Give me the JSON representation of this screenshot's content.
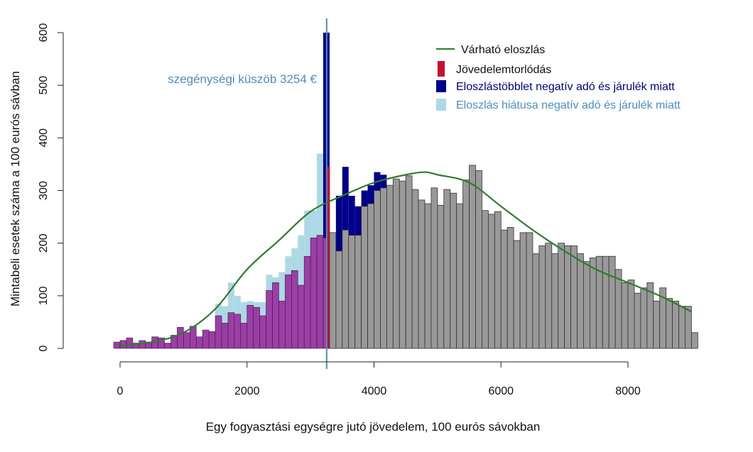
{
  "chart_data": {
    "type": "bar",
    "xlabel": "Egy fogyasztási egységre jutó jövedelem, 100 eurós sávokban",
    "ylabel": "Mintabeli esetek száma a 100 eurós sávban",
    "xlim": [
      -500,
      9100
    ],
    "ylim": [
      0,
      600
    ],
    "x_ticks": [
      0,
      2000,
      4000,
      6000,
      8000
    ],
    "y_ticks": [
      0,
      100,
      200,
      300,
      400,
      500,
      600
    ],
    "bin_width": 100,
    "bins": [
      {
        "x": -100,
        "gray": 0,
        "purple": 12,
        "navy": 0,
        "light": 0
      },
      {
        "x": 0,
        "gray": 0,
        "purple": 15,
        "navy": 0,
        "light": 0
      },
      {
        "x": 100,
        "gray": 0,
        "purple": 20,
        "navy": 0,
        "light": 0
      },
      {
        "x": 200,
        "gray": 0,
        "purple": 10,
        "navy": 0,
        "light": 0
      },
      {
        "x": 300,
        "gray": 0,
        "purple": 15,
        "navy": 0,
        "light": 0
      },
      {
        "x": 400,
        "gray": 0,
        "purple": 12,
        "navy": 0,
        "light": 0
      },
      {
        "x": 500,
        "gray": 0,
        "purple": 22,
        "navy": 0,
        "light": 0
      },
      {
        "x": 600,
        "gray": 0,
        "purple": 20,
        "navy": 0,
        "light": 0
      },
      {
        "x": 700,
        "gray": 0,
        "purple": 10,
        "navy": 0,
        "light": 0
      },
      {
        "x": 800,
        "gray": 0,
        "purple": 25,
        "navy": 0,
        "light": 0
      },
      {
        "x": 900,
        "gray": 0,
        "purple": 40,
        "navy": 0,
        "light": 0
      },
      {
        "x": 1000,
        "gray": 0,
        "purple": 30,
        "navy": 0,
        "light": 0
      },
      {
        "x": 1100,
        "gray": 0,
        "purple": 42,
        "navy": 0,
        "light": 0
      },
      {
        "x": 1200,
        "gray": 0,
        "purple": 22,
        "navy": 0,
        "light": 0
      },
      {
        "x": 1300,
        "gray": 0,
        "purple": 35,
        "navy": 0,
        "light": 0
      },
      {
        "x": 1400,
        "gray": 0,
        "purple": 32,
        "navy": 0,
        "light": 0
      },
      {
        "x": 1500,
        "gray": 0,
        "purple": 62,
        "navy": 0,
        "light": 85
      },
      {
        "x": 1600,
        "gray": 0,
        "purple": 48,
        "navy": 0,
        "light": 80
      },
      {
        "x": 1700,
        "gray": 0,
        "purple": 68,
        "navy": 0,
        "light": 125
      },
      {
        "x": 1800,
        "gray": 0,
        "purple": 65,
        "navy": 0,
        "light": 100
      },
      {
        "x": 1900,
        "gray": 0,
        "purple": 48,
        "navy": 0,
        "light": 88
      },
      {
        "x": 2000,
        "gray": 0,
        "purple": 82,
        "navy": 0,
        "light": 90
      },
      {
        "x": 2100,
        "gray": 0,
        "purple": 78,
        "navy": 0,
        "light": 88
      },
      {
        "x": 2200,
        "gray": 0,
        "purple": 62,
        "navy": 0,
        "light": 88
      },
      {
        "x": 2300,
        "gray": 0,
        "purple": 110,
        "navy": 0,
        "light": 140
      },
      {
        "x": 2400,
        "gray": 0,
        "purple": 125,
        "navy": 0,
        "light": 135
      },
      {
        "x": 2500,
        "gray": 0,
        "purple": 90,
        "navy": 0,
        "light": 145
      },
      {
        "x": 2600,
        "gray": 0,
        "purple": 140,
        "navy": 0,
        "light": 175
      },
      {
        "x": 2700,
        "gray": 0,
        "purple": 148,
        "navy": 0,
        "light": 190
      },
      {
        "x": 2800,
        "gray": 0,
        "purple": 120,
        "navy": 0,
        "light": 215
      },
      {
        "x": 2900,
        "gray": 0,
        "purple": 175,
        "navy": 0,
        "light": 262
      },
      {
        "x": 3000,
        "gray": 0,
        "purple": 210,
        "navy": 0,
        "light": 262
      },
      {
        "x": 3100,
        "gray": 0,
        "purple": 215,
        "navy": 0,
        "light": 370
      },
      {
        "x": 3200,
        "gray": 0,
        "purple": 210,
        "navy": 600,
        "light": 0,
        "red": 345
      },
      {
        "x": 3300,
        "gray": 220,
        "purple": 0,
        "navy": 0,
        "light": 0
      },
      {
        "x": 3400,
        "gray": 185,
        "purple": 0,
        "navy": 290,
        "light": 0
      },
      {
        "x": 3500,
        "gray": 225,
        "purple": 0,
        "navy": 345,
        "light": 0
      },
      {
        "x": 3600,
        "gray": 215,
        "purple": 0,
        "navy": 290,
        "light": 0
      },
      {
        "x": 3700,
        "gray": 215,
        "purple": 0,
        "navy": 270,
        "light": 0
      },
      {
        "x": 3800,
        "gray": 270,
        "purple": 0,
        "navy": 300,
        "light": 0
      },
      {
        "x": 3900,
        "gray": 275,
        "purple": 0,
        "navy": 310,
        "light": 0
      },
      {
        "x": 4000,
        "gray": 300,
        "purple": 0,
        "navy": 335,
        "light": 0
      },
      {
        "x": 4100,
        "gray": 305,
        "purple": 0,
        "navy": 330,
        "light": 0
      },
      {
        "x": 4200,
        "gray": 310,
        "purple": 0,
        "navy": 0,
        "light": 0
      },
      {
        "x": 4300,
        "gray": 322,
        "purple": 0,
        "navy": 0,
        "light": 0
      },
      {
        "x": 4400,
        "gray": 318,
        "purple": 0,
        "navy": 0,
        "light": 0
      },
      {
        "x": 4500,
        "gray": 328,
        "purple": 0,
        "navy": 0,
        "light": 0
      },
      {
        "x": 4600,
        "gray": 302,
        "purple": 0,
        "navy": 0,
        "light": 0
      },
      {
        "x": 4700,
        "gray": 282,
        "purple": 0,
        "navy": 0,
        "light": 0
      },
      {
        "x": 4800,
        "gray": 275,
        "purple": 0,
        "navy": 0,
        "light": 0
      },
      {
        "x": 4900,
        "gray": 305,
        "purple": 0,
        "navy": 0,
        "light": 0
      },
      {
        "x": 5000,
        "gray": 272,
        "purple": 0,
        "navy": 0,
        "light": 0
      },
      {
        "x": 5100,
        "gray": 302,
        "purple": 0,
        "navy": 0,
        "light": 0
      },
      {
        "x": 5200,
        "gray": 295,
        "purple": 0,
        "navy": 0,
        "light": 0
      },
      {
        "x": 5300,
        "gray": 275,
        "purple": 0,
        "navy": 0,
        "light": 0
      },
      {
        "x": 5400,
        "gray": 320,
        "purple": 0,
        "navy": 0,
        "light": 0
      },
      {
        "x": 5500,
        "gray": 348,
        "purple": 0,
        "navy": 0,
        "light": 0
      },
      {
        "x": 5600,
        "gray": 338,
        "purple": 0,
        "navy": 0,
        "light": 0
      },
      {
        "x": 5700,
        "gray": 262,
        "purple": 0,
        "navy": 0,
        "light": 0
      },
      {
        "x": 5800,
        "gray": 255,
        "purple": 0,
        "navy": 0,
        "light": 0
      },
      {
        "x": 5900,
        "gray": 260,
        "purple": 0,
        "navy": 0,
        "light": 0
      },
      {
        "x": 6000,
        "gray": 225,
        "purple": 0,
        "navy": 0,
        "light": 0
      },
      {
        "x": 6100,
        "gray": 230,
        "purple": 0,
        "navy": 0,
        "light": 0
      },
      {
        "x": 6200,
        "gray": 205,
        "purple": 0,
        "navy": 0,
        "light": 0
      },
      {
        "x": 6300,
        "gray": 220,
        "purple": 0,
        "navy": 0,
        "light": 0
      },
      {
        "x": 6400,
        "gray": 220,
        "purple": 0,
        "navy": 0,
        "light": 0
      },
      {
        "x": 6500,
        "gray": 180,
        "purple": 0,
        "navy": 0,
        "light": 0
      },
      {
        "x": 6600,
        "gray": 195,
        "purple": 0,
        "navy": 0,
        "light": 0
      },
      {
        "x": 6700,
        "gray": 200,
        "purple": 0,
        "navy": 0,
        "light": 0
      },
      {
        "x": 6800,
        "gray": 180,
        "purple": 0,
        "navy": 0,
        "light": 0
      },
      {
        "x": 6900,
        "gray": 200,
        "purple": 0,
        "navy": 0,
        "light": 0
      },
      {
        "x": 7000,
        "gray": 195,
        "purple": 0,
        "navy": 0,
        "light": 0
      },
      {
        "x": 7100,
        "gray": 195,
        "purple": 0,
        "navy": 0,
        "light": 0
      },
      {
        "x": 7200,
        "gray": 180,
        "purple": 0,
        "navy": 0,
        "light": 0
      },
      {
        "x": 7300,
        "gray": 165,
        "purple": 0,
        "navy": 0,
        "light": 0
      },
      {
        "x": 7400,
        "gray": 172,
        "purple": 0,
        "navy": 0,
        "light": 0
      },
      {
        "x": 7500,
        "gray": 175,
        "purple": 0,
        "navy": 0,
        "light": 0
      },
      {
        "x": 7600,
        "gray": 175,
        "purple": 0,
        "navy": 0,
        "light": 0
      },
      {
        "x": 7700,
        "gray": 175,
        "purple": 0,
        "navy": 0,
        "light": 0
      },
      {
        "x": 7800,
        "gray": 150,
        "purple": 0,
        "navy": 0,
        "light": 0
      },
      {
        "x": 7900,
        "gray": 125,
        "purple": 0,
        "navy": 0,
        "light": 0
      },
      {
        "x": 8000,
        "gray": 130,
        "purple": 0,
        "navy": 0,
        "light": 0
      },
      {
        "x": 8100,
        "gray": 105,
        "purple": 0,
        "navy": 0,
        "light": 0
      },
      {
        "x": 8200,
        "gray": 115,
        "purple": 0,
        "navy": 0,
        "light": 0
      },
      {
        "x": 8300,
        "gray": 125,
        "purple": 0,
        "navy": 0,
        "light": 0
      },
      {
        "x": 8400,
        "gray": 90,
        "purple": 0,
        "navy": 0,
        "light": 0
      },
      {
        "x": 8500,
        "gray": 115,
        "purple": 0,
        "navy": 0,
        "light": 0
      },
      {
        "x": 8600,
        "gray": 95,
        "purple": 0,
        "navy": 0,
        "light": 0
      },
      {
        "x": 8700,
        "gray": 90,
        "purple": 0,
        "navy": 0,
        "light": 0
      },
      {
        "x": 8800,
        "gray": 80,
        "purple": 0,
        "navy": 0,
        "light": 0
      },
      {
        "x": 8900,
        "gray": 80,
        "purple": 0,
        "navy": 0,
        "light": 0
      },
      {
        "x": 9000,
        "gray": 30,
        "purple": 0,
        "navy": 0,
        "light": 0
      }
    ],
    "expected_curve": {
      "name": "Várható eloszlás",
      "x": [
        0,
        500,
        1000,
        1500,
        2000,
        2500,
        3000,
        3500,
        4000,
        4500,
        4800,
        5000,
        5500,
        6000,
        6500,
        7000,
        7500,
        8000,
        8500,
        9000
      ],
      "y": [
        5,
        12,
        30,
        75,
        150,
        205,
        260,
        290,
        315,
        330,
        335,
        330,
        315,
        270,
        225,
        185,
        150,
        125,
        100,
        70
      ]
    },
    "threshold": {
      "x": 3254,
      "label": "szegénységi küszöb 3254 €"
    },
    "legend": {
      "position": "top-right",
      "entries": [
        {
          "label": "Várható eloszlás",
          "color": "#2e7d2e",
          "kind": "line"
        },
        {
          "label": "Jövedelemtorlódás",
          "color": "#c8102e",
          "kind": "box"
        },
        {
          "label": "Eloszlástöbblet negatív adó és járulék miatt",
          "color": "#00008b",
          "kind": "box"
        },
        {
          "label": "Eloszlás hiátusa negatív adó és járulék miatt",
          "color": "#add8e6",
          "kind": "box"
        }
      ]
    },
    "colors": {
      "gray": "#999999",
      "purple": "#9b3fa6",
      "navy": "#00008b",
      "light": "#add8e6",
      "red": "#c8102e",
      "curve": "#2e7d2e",
      "threshold": "#4a90c8",
      "legend_text": [
        "#111111",
        "#111111",
        "#00008b",
        "#4a90c8"
      ]
    }
  }
}
